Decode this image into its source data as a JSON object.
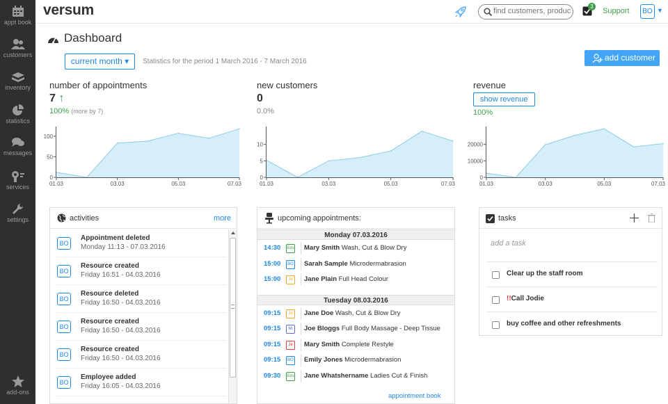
{
  "sidebar": {
    "items": [
      {
        "label": "appt book",
        "icon": "calendar-icon"
      },
      {
        "label": "customers",
        "icon": "customers-icon"
      },
      {
        "label": "inventory",
        "icon": "inventory-icon"
      },
      {
        "label": "statistics",
        "icon": "pie-chart-icon"
      },
      {
        "label": "messages",
        "icon": "messages-icon"
      },
      {
        "label": "services",
        "icon": "services-icon"
      },
      {
        "label": "settings",
        "icon": "wrench-icon"
      }
    ],
    "addons": {
      "label": "add-ons",
      "icon": "star-icon"
    }
  },
  "header": {
    "logo": "versum",
    "search_placeholder": "find customers, produc",
    "todo_count": "3",
    "support": "Support",
    "user_initials": "BO"
  },
  "dashboard": {
    "title": "Dashboard",
    "month_button": "current month ▾",
    "period": "Statistics for the period 1 March 2016 - 7 March 2016",
    "add_customer": "add customer"
  },
  "stats": {
    "appointments": {
      "label": "number of appointments",
      "value": "7",
      "arrow": "↑",
      "pct": "100%",
      "more": "(more by 7)"
    },
    "customers": {
      "label": "new customers",
      "value": "0",
      "pct": "0.0%"
    },
    "revenue": {
      "label": "revenue",
      "button": "show revenue",
      "pct": "100%"
    }
  },
  "chart_data": [
    {
      "type": "area",
      "title": "number of appointments",
      "x_ticks": [
        "01.03",
        "03.03",
        "05.03",
        "07.03"
      ],
      "y_ticks": [
        "100",
        "50",
        "0"
      ],
      "ylim": [
        0,
        120
      ],
      "x": [
        0,
        1,
        2,
        3,
        4,
        5,
        6
      ],
      "values": [
        12,
        0,
        83,
        88,
        107,
        95,
        118
      ]
    },
    {
      "type": "area",
      "title": "new customers",
      "x_ticks": [
        "01.03",
        "03.03",
        "05.03",
        "07.03"
      ],
      "y_ticks": [
        "10",
        "5",
        "0"
      ],
      "ylim": [
        0,
        15
      ],
      "x": [
        0,
        1,
        2,
        3,
        4,
        5,
        6
      ],
      "values": [
        5.2,
        0,
        5,
        6,
        8,
        14,
        11
      ]
    },
    {
      "type": "area",
      "title": "revenue",
      "x_ticks": [
        "01.03",
        "03.03",
        "05.03",
        "07.03"
      ],
      "y_ticks": [
        "20000",
        "10000",
        "0"
      ],
      "ylim": [
        0,
        30000
      ],
      "x": [
        0,
        1,
        2,
        3,
        4,
        5,
        6
      ],
      "values": [
        2500,
        0,
        19800,
        25500,
        29500,
        18500,
        20500
      ]
    }
  ],
  "activities": {
    "title": "activities",
    "more": "more",
    "items": [
      {
        "badge": "BO",
        "title": "Appointment deleted",
        "sub": "Monday 11:13 - 07.03.2016"
      },
      {
        "badge": "BO",
        "title": "Resource created",
        "sub": "Friday 16:51 - 04.03.2016"
      },
      {
        "badge": "BO",
        "title": "Resource deleted",
        "sub": "Friday 16:50 - 04.03.2016"
      },
      {
        "badge": "BO",
        "title": "Resource created",
        "sub": "Friday 16:50 - 04.03.2016"
      },
      {
        "badge": "BO",
        "title": "Resource created",
        "sub": "Friday 16:50 - 04.03.2016"
      },
      {
        "badge": "BO",
        "title": "Employee added",
        "sub": "Friday 16:05 - 04.03.2016"
      }
    ]
  },
  "appointments": {
    "title": "upcoming appointments:",
    "footer": "appointment book",
    "days": [
      {
        "label": "Monday 07.03.2016",
        "items": [
          {
            "time": "14:30",
            "badge": "Em",
            "color": "#3c9f49",
            "name": "Mary Smith",
            "service": "Wash, Cut & Blow Dry"
          },
          {
            "time": "15:00",
            "badge": "BO",
            "color": "#1e88e5",
            "name": "Sarah Sample",
            "service": "Microdermabrasion"
          },
          {
            "time": "15:00",
            "badge": "Je",
            "color": "#f5a623",
            "name": "Jane Plain",
            "service": "Full Head Colour"
          }
        ]
      },
      {
        "label": "Tuesday 08.03.2016",
        "items": [
          {
            "time": "09:15",
            "badge": "Je",
            "color": "#f5a623",
            "name": "Jane Doe",
            "service": "Wash, Cut & Blow Dry"
          },
          {
            "time": "09:15",
            "badge": "Mi",
            "color": "#5b6dd8",
            "name": "Joe Bloggs",
            "service": "Full Body Massage - Deep Tissue"
          },
          {
            "time": "09:15",
            "badge": "Je",
            "color": "#e53935",
            "name": "Mary Smith",
            "service": "Complete Restyle"
          },
          {
            "time": "09:15",
            "badge": "BO",
            "color": "#1e88e5",
            "name": "Emily Jones",
            "service": "Microdermabrasion"
          },
          {
            "time": "09:30",
            "badge": "Em",
            "color": "#3c9f49",
            "name": "Jane Whatshername",
            "service": "Ladies Cut & Finish"
          }
        ]
      }
    ]
  },
  "tasks": {
    "title": "tasks",
    "placeholder": "add a task",
    "items": [
      {
        "label": "Clear up the staff room",
        "urgent": ""
      },
      {
        "label": "Call Jodie",
        "urgent": "!!"
      },
      {
        "label": "buy coffee and other refreshments",
        "urgent": ""
      }
    ]
  }
}
